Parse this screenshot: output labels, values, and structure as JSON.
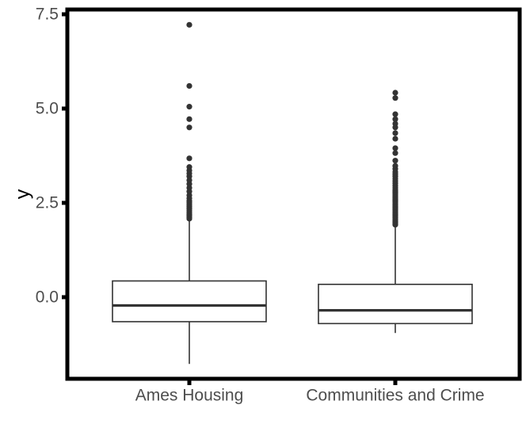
{
  "chart_data": {
    "type": "boxplot",
    "title": "",
    "xlabel": "",
    "ylabel": "y",
    "ylim": [
      -1.8,
      7.6
    ],
    "yticks": [
      {
        "value": 0.0,
        "label": "0.0"
      },
      {
        "value": 2.5,
        "label": "2.5"
      },
      {
        "value": 5.0,
        "label": "5.0"
      },
      {
        "value": 7.5,
        "label": "7.5"
      }
    ],
    "grid": false,
    "legend": "none",
    "categories": [
      "Ames Housing",
      "Communities and Crime"
    ],
    "boxes": [
      {
        "category": "Ames Housing",
        "whisker_low": -1.77,
        "q1": -0.65,
        "median": -0.22,
        "q3": 0.43,
        "whisker_high": 2.05,
        "outliers": [
          2.08,
          2.12,
          2.16,
          2.2,
          2.25,
          2.3,
          2.35,
          2.4,
          2.45,
          2.5,
          2.55,
          2.62,
          2.7,
          2.8,
          2.9,
          3.0,
          3.1,
          3.2,
          3.28,
          3.36,
          3.45,
          3.68,
          4.5,
          4.72,
          5.05,
          5.6,
          7.22
        ]
      },
      {
        "category": "Communities and Crime",
        "whisker_low": -0.95,
        "q1": -0.7,
        "median": -0.35,
        "q3": 0.34,
        "whisker_high": 1.88,
        "outliers": [
          1.92,
          1.96,
          2.0,
          2.04,
          2.08,
          2.12,
          2.16,
          2.2,
          2.24,
          2.28,
          2.32,
          2.36,
          2.4,
          2.44,
          2.48,
          2.52,
          2.56,
          2.6,
          2.64,
          2.68,
          2.72,
          2.76,
          2.8,
          2.84,
          2.9,
          2.96,
          3.02,
          3.08,
          3.14,
          3.2,
          3.26,
          3.32,
          3.4,
          3.48,
          3.62,
          3.82,
          3.95,
          4.2,
          4.35,
          4.5,
          4.6,
          4.72,
          4.85,
          5.28,
          5.42
        ]
      }
    ],
    "colors": {
      "box_stroke": "#333333",
      "box_fill": "#ffffff",
      "outlier": "#333333",
      "panel_border": "#000000",
      "tick_label": "#4d4d4d"
    }
  }
}
